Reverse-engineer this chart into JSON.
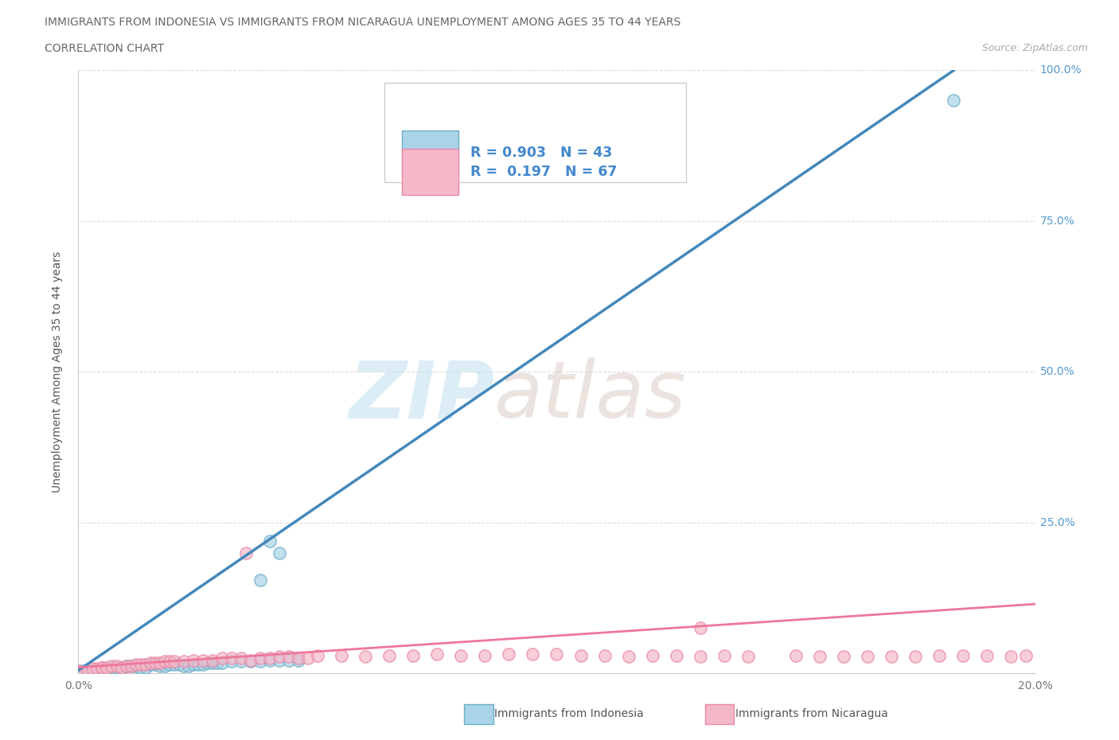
{
  "title_line1": "IMMIGRANTS FROM INDONESIA VS IMMIGRANTS FROM NICARAGUA UNEMPLOYMENT AMONG AGES 35 TO 44 YEARS",
  "title_line2": "CORRELATION CHART",
  "source_text": "Source: ZipAtlas.com",
  "ylabel": "Unemployment Among Ages 35 to 44 years",
  "xlabel_indonesia": "Immigrants from Indonesia",
  "xlabel_nicaragua": "Immigrants from Nicaragua",
  "xlim": [
    0.0,
    0.2
  ],
  "ylim": [
    0.0,
    1.0
  ],
  "yticks": [
    0.0,
    0.25,
    0.5,
    0.75,
    1.0
  ],
  "ytick_labels_right": [
    "",
    "25.0%",
    "50.0%",
    "75.0%",
    "100.0%"
  ],
  "xticks": [
    0.0,
    0.05,
    0.1,
    0.15,
    0.2
  ],
  "xtick_labels": [
    "0.0%",
    "",
    "",
    "",
    "20.0%"
  ],
  "indonesia_color": "#aad4e8",
  "nicaragua_color": "#f5b8c8",
  "indonesia_edge_color": "#6aaec8",
  "nicaragua_edge_color": "#e888a8",
  "indonesia_line_color": "#4488bb",
  "nicaragua_line_color": "#ee7799",
  "R_indonesia": 0.903,
  "N_indonesia": 43,
  "R_nicaragua": 0.197,
  "N_nicaragua": 67,
  "watermark_zip": "ZIP",
  "watermark_atlas": "atlas",
  "background_color": "#ffffff",
  "grid_color": "#dddddd",
  "title_color": "#666666",
  "axis_label_color": "#555555",
  "legend_text_color": "#4488cc",
  "ytick_color": "#5599cc",
  "indo_line_y0": 0.005,
  "indo_line_y1": 1.0,
  "indo_line_x0": 0.0,
  "indo_line_x1": 0.183,
  "nic_line_y0": 0.01,
  "nic_line_y1": 0.115,
  "nic_line_x0": 0.0,
  "nic_line_x1": 0.2
}
